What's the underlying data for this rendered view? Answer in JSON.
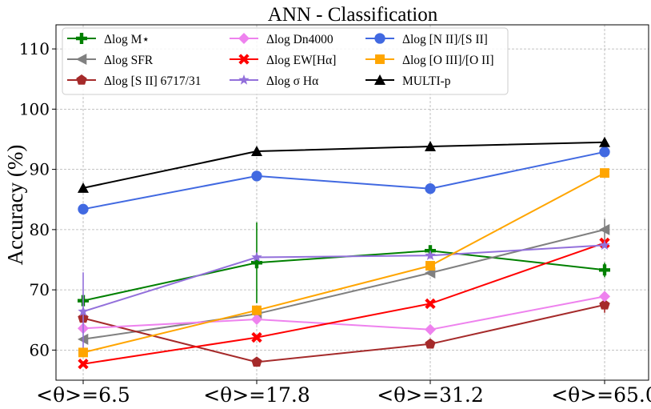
{
  "chart_data": {
    "type": "line",
    "title": "ANN - Classification",
    "xlabel": "",
    "ylabel": "Accuracy (%)",
    "categories": [
      "<θ>=6.5",
      "<θ>=17.8",
      "<θ>=31.2",
      "<θ>=65.0"
    ],
    "x_positions": [
      6.5,
      17.8,
      31.2,
      65.0
    ],
    "ylim": [
      55,
      114
    ],
    "yticks": [
      60,
      70,
      80,
      90,
      100,
      110
    ],
    "grid": true,
    "legend_position": "top",
    "series": [
      {
        "name": "Δlog M⋆",
        "color": "#008000",
        "marker": "plus",
        "values": [
          68.2,
          74.5,
          76.5,
          73.3
        ],
        "errors": [
          0,
          6.7,
          0,
          1.2
        ]
      },
      {
        "name": "Δlog SFR",
        "color": "#808080",
        "marker": "triangle-left",
        "values": [
          61.8,
          66.0,
          72.8,
          80.0
        ],
        "errors": [
          0,
          0,
          0,
          1.8
        ]
      },
      {
        "name": "Δlog [S II] 6717/31",
        "color": "#a52a2a",
        "marker": "pentagon",
        "values": [
          65.3,
          58.0,
          61.0,
          67.5
        ],
        "errors": [
          0,
          0,
          0,
          1.3
        ]
      },
      {
        "name": "Δlog Dn4000",
        "color": "#ee82ee",
        "marker": "diamond",
        "values": [
          63.6,
          65.1,
          63.4,
          68.9
        ],
        "errors": [
          0,
          0,
          0,
          0
        ]
      },
      {
        "name": "Δlog EW[Hα]",
        "color": "#ff0000",
        "marker": "x",
        "values": [
          57.7,
          62.1,
          67.7,
          77.8
        ],
        "errors": [
          0,
          0,
          0,
          0
        ]
      },
      {
        "name": "Δlog σ Hα",
        "color": "#9370db",
        "marker": "star",
        "values": [
          66.4,
          75.4,
          75.7,
          77.4
        ],
        "errors": [
          6.5,
          0,
          0,
          0
        ]
      },
      {
        "name": "Δlog [N II]/[S II]",
        "color": "#4169e1",
        "marker": "circle",
        "values": [
          83.4,
          88.9,
          86.8,
          92.9
        ],
        "errors": [
          0,
          0,
          0,
          0
        ]
      },
      {
        "name": "Δlog [O III]/[O II]",
        "color": "#ffa500",
        "marker": "square",
        "values": [
          59.6,
          66.6,
          74.0,
          89.4
        ],
        "errors": [
          0,
          0,
          0,
          0
        ]
      },
      {
        "name": "MULTI-p",
        "color": "#000000",
        "marker": "triangle-up",
        "values": [
          86.9,
          93.0,
          93.8,
          94.5
        ],
        "errors": [
          0,
          0,
          0,
          0
        ]
      }
    ]
  }
}
